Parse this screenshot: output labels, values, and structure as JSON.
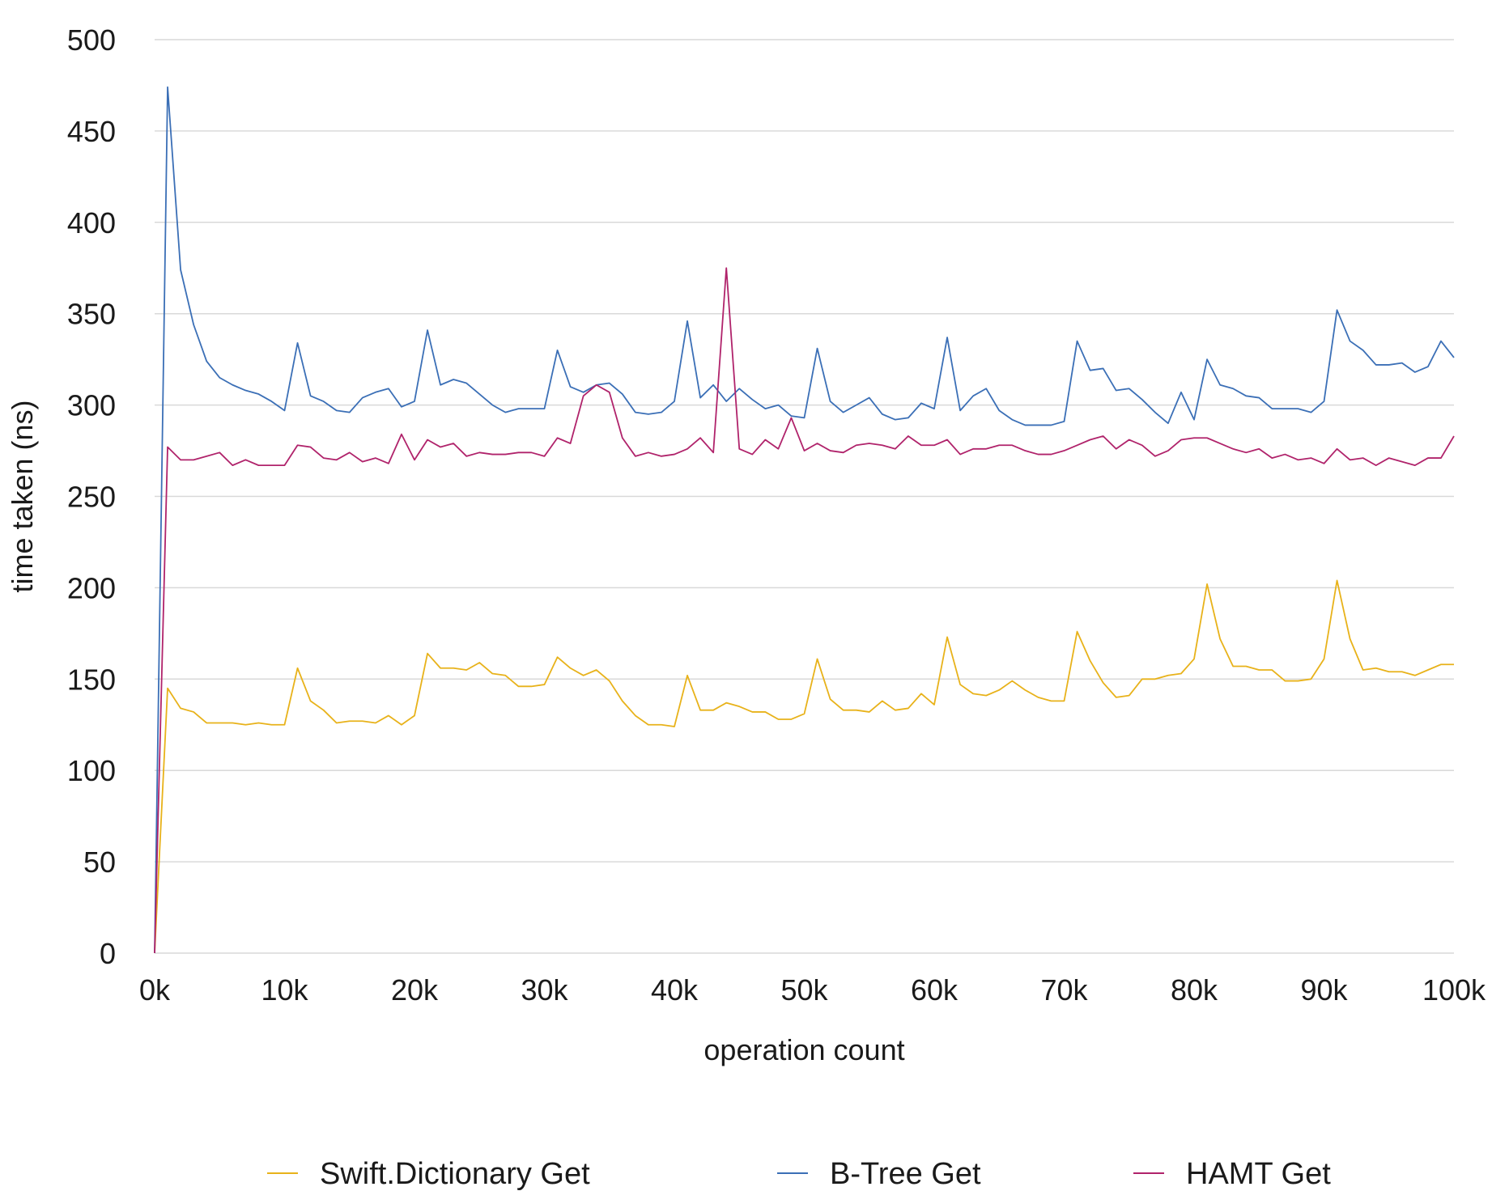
{
  "chart_data": {
    "type": "line",
    "title": "",
    "xlabel": "operation count",
    "ylabel": "time taken (ns)",
    "xlim": [
      0,
      100000
    ],
    "ylim": [
      0,
      500
    ],
    "x_ticks": [
      0,
      10000,
      20000,
      30000,
      40000,
      50000,
      60000,
      70000,
      80000,
      90000,
      100000
    ],
    "x_tick_labels": [
      "0k",
      "10k",
      "20k",
      "30k",
      "40k",
      "50k",
      "60k",
      "70k",
      "80k",
      "90k",
      "100k"
    ],
    "y_ticks": [
      0,
      50,
      100,
      150,
      200,
      250,
      300,
      350,
      400,
      450,
      500
    ],
    "y_tick_labels": [
      "0",
      "50",
      "100",
      "150",
      "200",
      "250",
      "300",
      "350",
      "400",
      "450",
      "500"
    ],
    "grid": true,
    "legend_position": "bottom",
    "x_step": 1000,
    "series": [
      {
        "name": "Swift.Dictionary Get",
        "color": "#e8b21a",
        "values": [
          0,
          145,
          134,
          132,
          126,
          126,
          126,
          125,
          126,
          125,
          125,
          156,
          138,
          133,
          126,
          127,
          127,
          126,
          130,
          125,
          130,
          164,
          156,
          156,
          155,
          159,
          153,
          152,
          146,
          146,
          147,
          162,
          156,
          152,
          155,
          149,
          138,
          130,
          125,
          125,
          124,
          152,
          133,
          133,
          137,
          135,
          132,
          132,
          128,
          128,
          131,
          161,
          139,
          133,
          133,
          132,
          138,
          133,
          134,
          142,
          136,
          173,
          147,
          142,
          141,
          144,
          149,
          144,
          140,
          138,
          138,
          176,
          160,
          148,
          140,
          141,
          150,
          150,
          152,
          153,
          161,
          202,
          172,
          157,
          157,
          155,
          155,
          149,
          149,
          150,
          161,
          204,
          172,
          155,
          156,
          154,
          154,
          152,
          155,
          158,
          158
        ]
      },
      {
        "name": "B-Tree Get",
        "color": "#3b6fb6",
        "values": [
          0,
          474,
          374,
          344,
          324,
          315,
          311,
          308,
          306,
          302,
          297,
          334,
          305,
          302,
          297,
          296,
          304,
          307,
          309,
          299,
          302,
          341,
          311,
          314,
          312,
          306,
          300,
          296,
          298,
          298,
          298,
          330,
          310,
          307,
          311,
          312,
          306,
          296,
          295,
          296,
          302,
          346,
          304,
          311,
          302,
          309,
          303,
          298,
          300,
          294,
          293,
          331,
          302,
          296,
          300,
          304,
          295,
          292,
          293,
          301,
          298,
          337,
          297,
          305,
          309,
          297,
          292,
          289,
          289,
          289,
          291,
          335,
          319,
          320,
          308,
          309,
          303,
          296,
          290,
          307,
          292,
          325,
          311,
          309,
          305,
          304,
          298,
          298,
          298,
          296,
          302,
          352,
          335,
          330,
          322,
          322,
          323,
          318,
          321,
          335,
          326
        ]
      },
      {
        "name": "HAMT Get",
        "color": "#b0236b",
        "values": [
          0,
          277,
          270,
          270,
          272,
          274,
          267,
          270,
          267,
          267,
          267,
          278,
          277,
          271,
          270,
          274,
          269,
          271,
          268,
          284,
          270,
          281,
          277,
          279,
          272,
          274,
          273,
          273,
          274,
          274,
          272,
          282,
          279,
          305,
          311,
          307,
          282,
          272,
          274,
          272,
          273,
          276,
          282,
          274,
          375,
          276,
          273,
          281,
          276,
          293,
          275,
          279,
          275,
          274,
          278,
          279,
          278,
          276,
          283,
          278,
          278,
          281,
          273,
          276,
          276,
          278,
          278,
          275,
          273,
          273,
          275,
          278,
          281,
          283,
          276,
          281,
          278,
          272,
          275,
          281,
          282,
          282,
          279,
          276,
          274,
          276,
          271,
          273,
          270,
          271,
          268,
          276,
          270,
          271,
          267,
          271,
          269,
          267,
          271,
          271,
          283
        ]
      }
    ]
  }
}
